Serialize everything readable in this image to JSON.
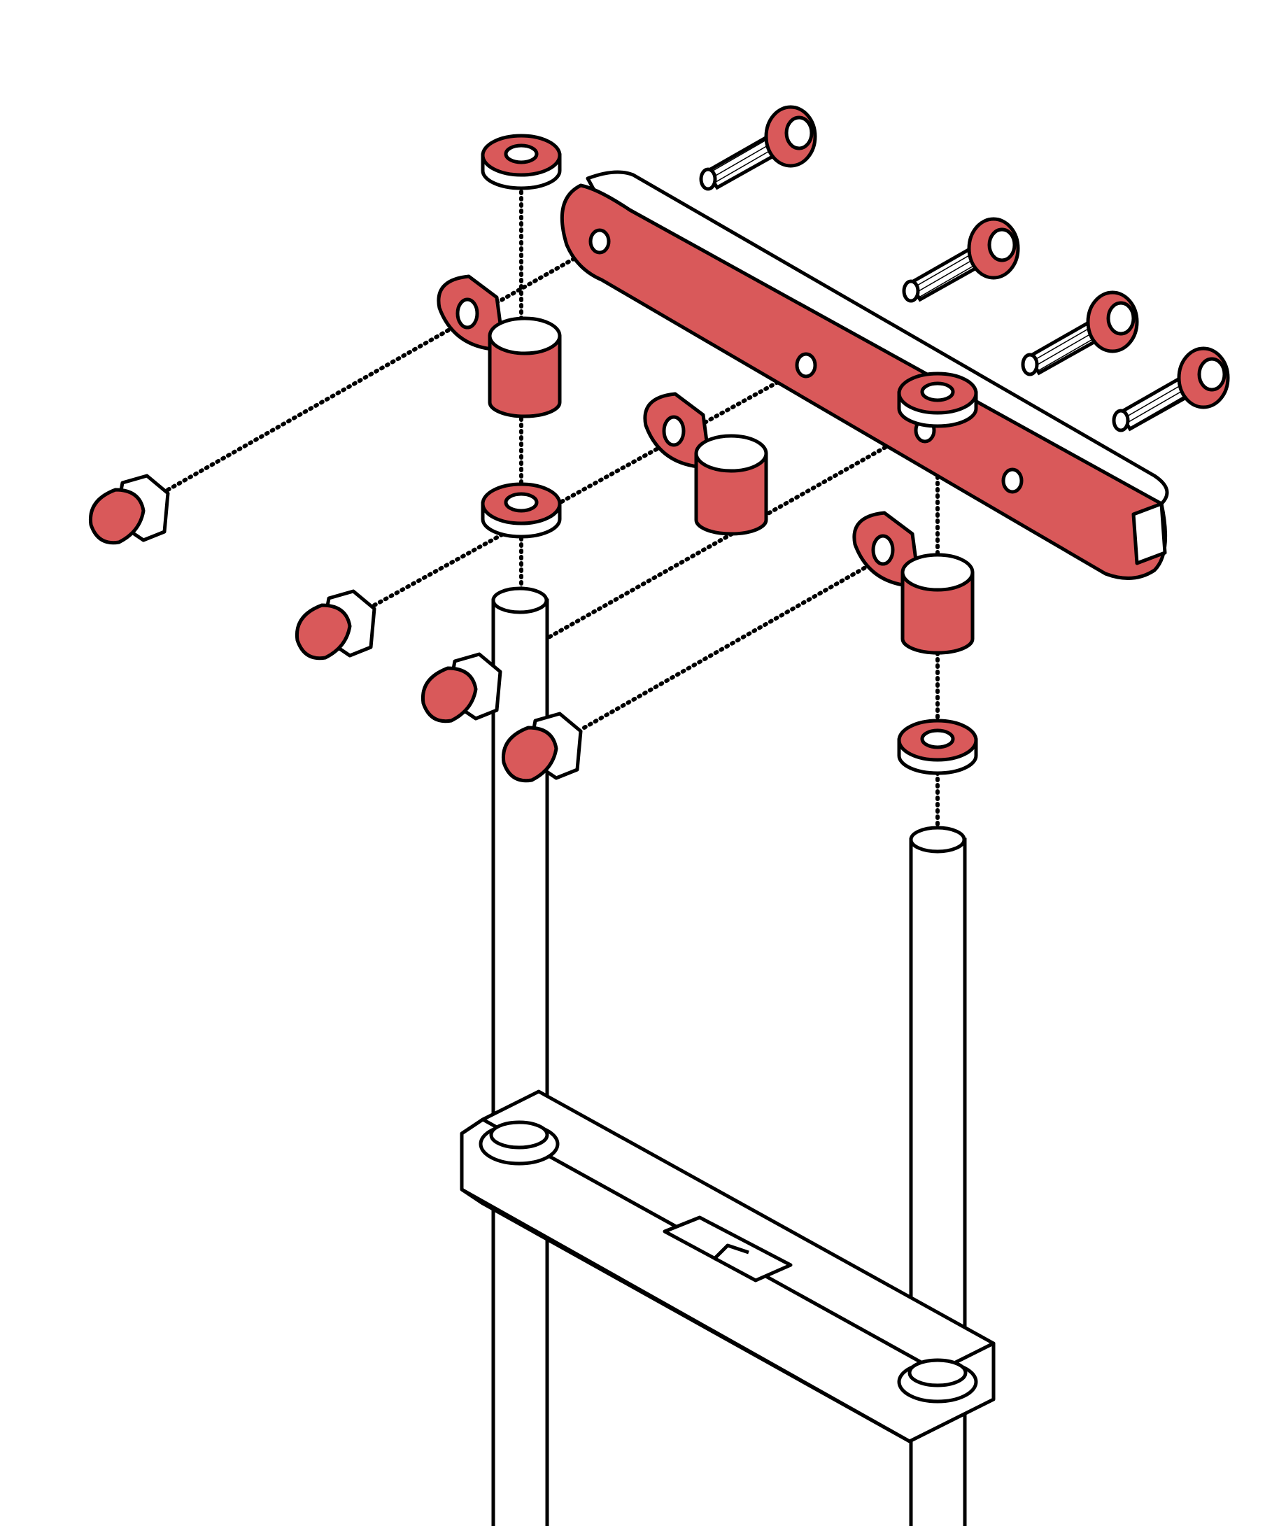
{
  "diagram": {
    "style": "isometric exploded assembly drawing",
    "colors": {
      "accent": "#d9595a",
      "outline": "#000000",
      "background": "#ffffff",
      "dotted_guide": "#000000"
    },
    "parts": [
      {
        "name": "top-bar",
        "count": 1,
        "color": "accent"
      },
      {
        "name": "bolts",
        "count": 4,
        "color": "accent"
      },
      {
        "name": "washers",
        "count": 4,
        "color": "accent"
      },
      {
        "name": "clamps",
        "count": 3,
        "color": "accent"
      },
      {
        "name": "cap-nuts",
        "count": 4,
        "color": "accent"
      },
      {
        "name": "posts",
        "count": 2,
        "color": "white"
      },
      {
        "name": "crossbar",
        "count": 1,
        "color": "white"
      }
    ]
  }
}
